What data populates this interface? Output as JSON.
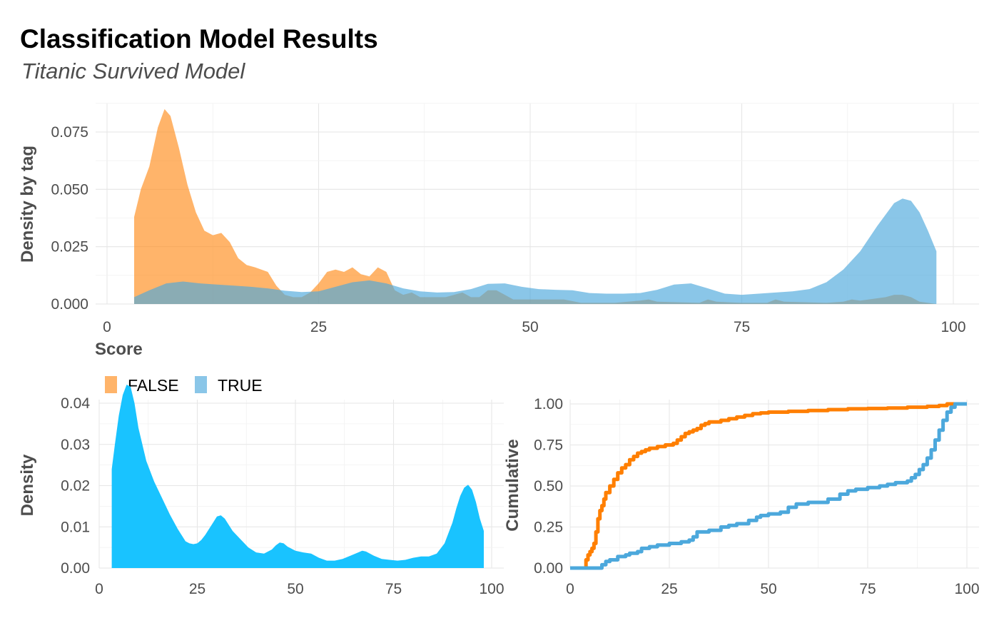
{
  "header": {
    "title": "Classification Model Results",
    "subtitle": "Titanic Survived Model"
  },
  "chart_data": [
    {
      "id": "density_by_tag",
      "type": "area",
      "xlabel": "Score",
      "ylabel": "Density by tag",
      "xlim": [
        0,
        100
      ],
      "ylim": [
        0,
        0.087
      ],
      "xticks": [
        0,
        25,
        50,
        75,
        100
      ],
      "yticks": [
        0.0,
        0.025,
        0.05,
        0.075
      ],
      "ytick_labels": [
        "0.000",
        "0.025",
        "0.050",
        "0.075"
      ],
      "grid": true,
      "legend": {
        "position": "bottom-left",
        "entries": [
          "FALSE",
          "TRUE"
        ]
      },
      "series": [
        {
          "name": "FALSE",
          "color": "#FF8C1A",
          "opacity": 0.65,
          "x": [
            3.2,
            4,
            5,
            6,
            6.8,
            7.5,
            8.5,
            9.5,
            10.5,
            11.5,
            12.5,
            13.5,
            14.5,
            15.5,
            16.5,
            17.5,
            19,
            20,
            21,
            22,
            23,
            24,
            25,
            26,
            27,
            28,
            29,
            30,
            31,
            32,
            33,
            34,
            35,
            36,
            37,
            38,
            40,
            42,
            43,
            44,
            45,
            46,
            47,
            48,
            50,
            52,
            54,
            56,
            60,
            63,
            64,
            65,
            70,
            71,
            72,
            75,
            78,
            79,
            80,
            85,
            87,
            88,
            89,
            90,
            92,
            93,
            94,
            95,
            96,
            98
          ],
          "y": [
            0.038,
            0.05,
            0.06,
            0.077,
            0.085,
            0.082,
            0.068,
            0.052,
            0.04,
            0.032,
            0.03,
            0.031,
            0.027,
            0.02,
            0.017,
            0.016,
            0.014,
            0.008,
            0.004,
            0.003,
            0.003,
            0.005,
            0.009,
            0.014,
            0.015,
            0.014,
            0.016,
            0.013,
            0.012,
            0.016,
            0.014,
            0.006,
            0.004,
            0.005,
            0.003,
            0.003,
            0.003,
            0.005,
            0.003,
            0.003,
            0.006,
            0.006,
            0.004,
            0.002,
            0.002,
            0.002,
            0.002,
            0.0005,
            0.0005,
            0.0015,
            0.002,
            0.001,
            0.0005,
            0.002,
            0.001,
            0.0005,
            0.0005,
            0.002,
            0.001,
            0.0005,
            0.001,
            0.002,
            0.0015,
            0.002,
            0.003,
            0.004,
            0.004,
            0.003,
            0.001,
            0.0
          ]
        },
        {
          "name": "TRUE",
          "color": "#4CA8DC",
          "opacity": 0.65,
          "x": [
            3.2,
            5,
            7,
            9,
            11,
            13,
            15,
            17,
            19,
            21,
            23,
            25,
            27,
            29,
            31,
            33,
            35,
            37,
            39,
            41,
            43,
            45,
            47,
            49,
            51,
            53,
            55,
            57,
            59,
            61,
            63,
            65,
            67,
            69,
            71,
            73,
            75,
            77,
            79,
            81,
            83,
            85,
            87,
            89,
            91,
            93,
            94,
            95,
            96,
            97,
            98
          ],
          "y": [
            0.003,
            0.006,
            0.009,
            0.0098,
            0.009,
            0.0085,
            0.008,
            0.0075,
            0.0068,
            0.0058,
            0.0052,
            0.0055,
            0.0075,
            0.0095,
            0.0103,
            0.009,
            0.0068,
            0.0055,
            0.005,
            0.0052,
            0.0065,
            0.0088,
            0.009,
            0.0075,
            0.0065,
            0.0062,
            0.006,
            0.0048,
            0.0045,
            0.0045,
            0.0048,
            0.0062,
            0.0085,
            0.009,
            0.0068,
            0.0045,
            0.004,
            0.0045,
            0.005,
            0.0055,
            0.0065,
            0.0095,
            0.015,
            0.023,
            0.034,
            0.044,
            0.046,
            0.045,
            0.04,
            0.032,
            0.023
          ]
        }
      ]
    },
    {
      "id": "density",
      "type": "area",
      "xlabel": "",
      "ylabel": "Density",
      "xlim": [
        0,
        100
      ],
      "ylim": [
        0,
        0.045
      ],
      "xticks": [
        0,
        25,
        50,
        75,
        100
      ],
      "yticks": [
        0.0,
        0.01,
        0.02,
        0.03,
        0.04
      ],
      "ytick_labels": [
        "0.00",
        "0.01",
        "0.02",
        "0.03",
        "0.04"
      ],
      "grid": true,
      "series": [
        {
          "color": "#19C3FF",
          "x": [
            3.2,
            4,
            5,
            6,
            7,
            8,
            9,
            10,
            12,
            14,
            16,
            18,
            20,
            22,
            23,
            24,
            25,
            26,
            27,
            28,
            29,
            30,
            31,
            32,
            33,
            34,
            36,
            38,
            40,
            42,
            44,
            45,
            46,
            47,
            48,
            50,
            52,
            54,
            56,
            58,
            60,
            62,
            64,
            66,
            67,
            68,
            70,
            72,
            74,
            76,
            78,
            80,
            82,
            84,
            86,
            88,
            90,
            91,
            92,
            93,
            94,
            95,
            96,
            97,
            98
          ],
          "y": [
            0.024,
            0.03,
            0.037,
            0.042,
            0.0445,
            0.044,
            0.04,
            0.034,
            0.026,
            0.021,
            0.017,
            0.013,
            0.0095,
            0.0065,
            0.006,
            0.0058,
            0.006,
            0.0068,
            0.008,
            0.0095,
            0.011,
            0.0125,
            0.0128,
            0.012,
            0.0105,
            0.009,
            0.007,
            0.005,
            0.0038,
            0.0035,
            0.0045,
            0.0055,
            0.0062,
            0.006,
            0.0052,
            0.0042,
            0.0038,
            0.0035,
            0.0025,
            0.0018,
            0.0018,
            0.0022,
            0.003,
            0.0038,
            0.0042,
            0.004,
            0.003,
            0.0022,
            0.002,
            0.0018,
            0.002,
            0.0025,
            0.0028,
            0.0028,
            0.0035,
            0.006,
            0.011,
            0.0145,
            0.0175,
            0.0195,
            0.0202,
            0.019,
            0.016,
            0.012,
            0.009
          ]
        }
      ]
    },
    {
      "id": "cumulative",
      "type": "line",
      "xlabel": "",
      "ylabel": "Cumulative",
      "xlim": [
        0,
        100
      ],
      "ylim": [
        0,
        1.0
      ],
      "xticks": [
        0,
        25,
        50,
        75,
        100
      ],
      "yticks": [
        0.0,
        0.25,
        0.5,
        0.75,
        1.0
      ],
      "ytick_labels": [
        "0.00",
        "0.25",
        "0.50",
        "0.75",
        "1.00"
      ],
      "grid": true,
      "series": [
        {
          "name": "FALSE",
          "color": "#FF7F00",
          "x": [
            0,
            3,
            4,
            4.5,
            5,
            5.5,
            6,
            6.5,
            7,
            7.5,
            8,
            8.5,
            9,
            10,
            11,
            12,
            13,
            14,
            15,
            16,
            17,
            18,
            19,
            20,
            22,
            24,
            26,
            27,
            28,
            29,
            30,
            31,
            32,
            33,
            34,
            35,
            36,
            38,
            40,
            42,
            44,
            46,
            48,
            50,
            55,
            60,
            65,
            70,
            75,
            80,
            85,
            90,
            93,
            95,
            97,
            100
          ],
          "y": [
            0,
            0,
            0.05,
            0.08,
            0.1,
            0.12,
            0.15,
            0.22,
            0.3,
            0.35,
            0.38,
            0.42,
            0.46,
            0.5,
            0.54,
            0.58,
            0.61,
            0.63,
            0.66,
            0.68,
            0.7,
            0.71,
            0.72,
            0.73,
            0.74,
            0.75,
            0.76,
            0.78,
            0.8,
            0.82,
            0.83,
            0.84,
            0.85,
            0.87,
            0.88,
            0.89,
            0.89,
            0.9,
            0.91,
            0.92,
            0.93,
            0.94,
            0.945,
            0.95,
            0.955,
            0.96,
            0.965,
            0.97,
            0.972,
            0.975,
            0.98,
            0.985,
            0.99,
            1.0,
            1.0,
            1.0
          ]
        },
        {
          "name": "TRUE",
          "color": "#4CA8DC",
          "x": [
            0,
            7,
            8,
            9,
            10,
            12,
            14,
            15,
            17,
            18,
            20,
            22,
            25,
            28,
            30,
            31,
            32,
            35,
            38,
            40,
            42,
            45,
            47,
            48,
            50,
            53,
            55,
            57,
            60,
            65,
            68,
            70,
            72,
            75,
            78,
            80,
            82,
            85,
            86,
            87,
            88,
            89,
            90,
            91,
            92,
            93,
            94,
            95,
            96,
            97,
            100
          ],
          "y": [
            0,
            0,
            0.02,
            0.04,
            0.05,
            0.07,
            0.08,
            0.09,
            0.1,
            0.12,
            0.13,
            0.14,
            0.15,
            0.16,
            0.17,
            0.19,
            0.22,
            0.23,
            0.25,
            0.26,
            0.27,
            0.29,
            0.31,
            0.32,
            0.33,
            0.34,
            0.37,
            0.39,
            0.4,
            0.42,
            0.45,
            0.47,
            0.48,
            0.49,
            0.5,
            0.51,
            0.52,
            0.53,
            0.55,
            0.57,
            0.6,
            0.63,
            0.67,
            0.72,
            0.78,
            0.84,
            0.9,
            0.95,
            0.98,
            1.0,
            1.0
          ]
        }
      ]
    }
  ]
}
